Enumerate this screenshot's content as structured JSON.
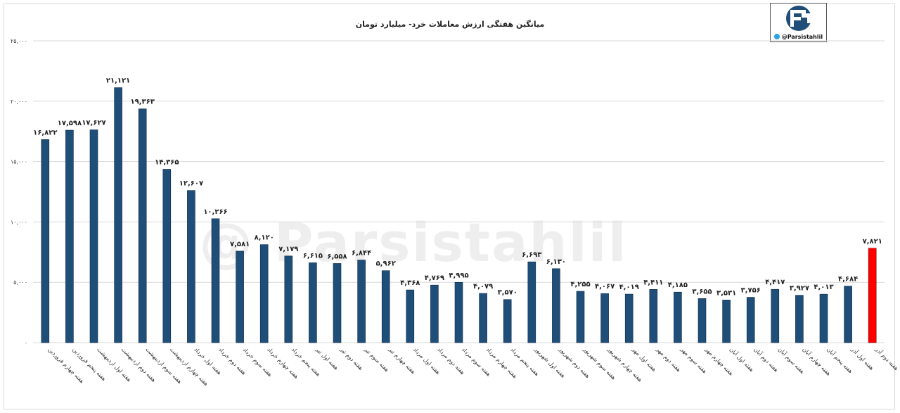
{
  "chart_data": {
    "type": "bar",
    "title": "میانگین هفتگی ارزش معاملات خرد- میلیارد تومان",
    "ylim": [
      0,
      25000
    ],
    "y_ticks": [
      0,
      5000,
      10000,
      15000,
      20000,
      25000
    ],
    "y_tick_labels": [
      "۰",
      "۵,۰۰۰",
      "۱۰,۰۰۰",
      "۱۵,۰۰۰",
      "۲۰,۰۰۰",
      "۲۵,۰۰۰"
    ],
    "grid": true,
    "categories": [
      "هفته چهارم فروردین",
      "هفته پنجم فروردین",
      "هفته اول اردیبهشت",
      "هفته دوم اردیبهشت",
      "هفته سوم اردیبهشت",
      "هفته چهارم اردیبهشت",
      "هفته اول خرداد",
      "هفته دوم خرداد",
      "هفته سوم خرداد",
      "هفته چهارم خرداد",
      "هفته پنجم خرداد",
      "هفته اول تیر",
      "هفته دوم تیر",
      "هفته سوم تیر",
      "هفته چهارم تیر",
      "هفته اول مرداد",
      "هفته دوم مرداد",
      "هفته سوم مرداد",
      "هفته چهارم مرداد",
      "هفته پنجم مرداد",
      "هفته اول شهریور",
      "هفته دوم شهریور",
      "هفته سوم شهریور",
      "هفته چهارم شهریور",
      "هفته اول مهر",
      "هفته دوم مهر",
      "هفته سوم مهر",
      "هفته چهارم مهر",
      "هفته اول آبان",
      "هفته دوم آبان",
      "هفته سوم آبان",
      "هفته چهارم آبان",
      "هفته پنجم آبان",
      "هفته اول آذر",
      "هفته دوم آذر"
    ],
    "values": [
      16822,
      17598,
      17627,
      21121,
      19363,
      14365,
      12607,
      10266,
      7581,
      8120,
      7179,
      6615,
      6558,
      6844,
      5962,
      4368,
      4769,
      4995,
      4079,
      3570,
      6693,
      6130,
      4255,
      4067,
      4019,
      4411,
      4185,
      3655,
      3531,
      3756,
      4417,
      3927,
      4013,
      4684,
      7821
    ],
    "value_labels": [
      "۱۶,۸۲۲",
      "۱۷,۵۹۸",
      "۱۷,۶۲۷",
      "۲۱,۱۲۱",
      "۱۹,۳۶۳",
      "۱۴,۳۶۵",
      "۱۲,۶۰۷",
      "۱۰,۲۶۶",
      "۷,۵۸۱",
      "۸,۱۲۰",
      "۷,۱۷۹",
      "۶,۶۱۵",
      "۶,۵۵۸",
      "۶,۸۴۴",
      "۵,۹۶۲",
      "۴,۳۶۸",
      "۴,۷۶۹",
      "۴,۹۹۵",
      "۴,۰۷۹",
      "۳,۵۷۰",
      "۶,۶۹۳",
      "۶,۱۳۰",
      "۴,۲۵۵",
      "۴,۰۶۷",
      "۴,۰۱۹",
      "۴,۴۱۱",
      "۴,۱۸۵",
      "۳,۶۵۵",
      "۳,۵۳۱",
      "۳,۷۵۶",
      "۴,۴۱۷",
      "۳,۹۲۷",
      "۴,۰۱۳",
      "۴,۶۸۴",
      "۷,۸۲۱"
    ],
    "highlight_index": 34,
    "colors": {
      "bar": "#1f4e79",
      "highlight": "#ff0000",
      "highlight_label": "#e00000",
      "grid": "#d9d9d9"
    }
  },
  "logo": {
    "handle": "@Parsistahlil",
    "icon": "telegram-icon"
  },
  "watermark": "@ Parsistahlil"
}
